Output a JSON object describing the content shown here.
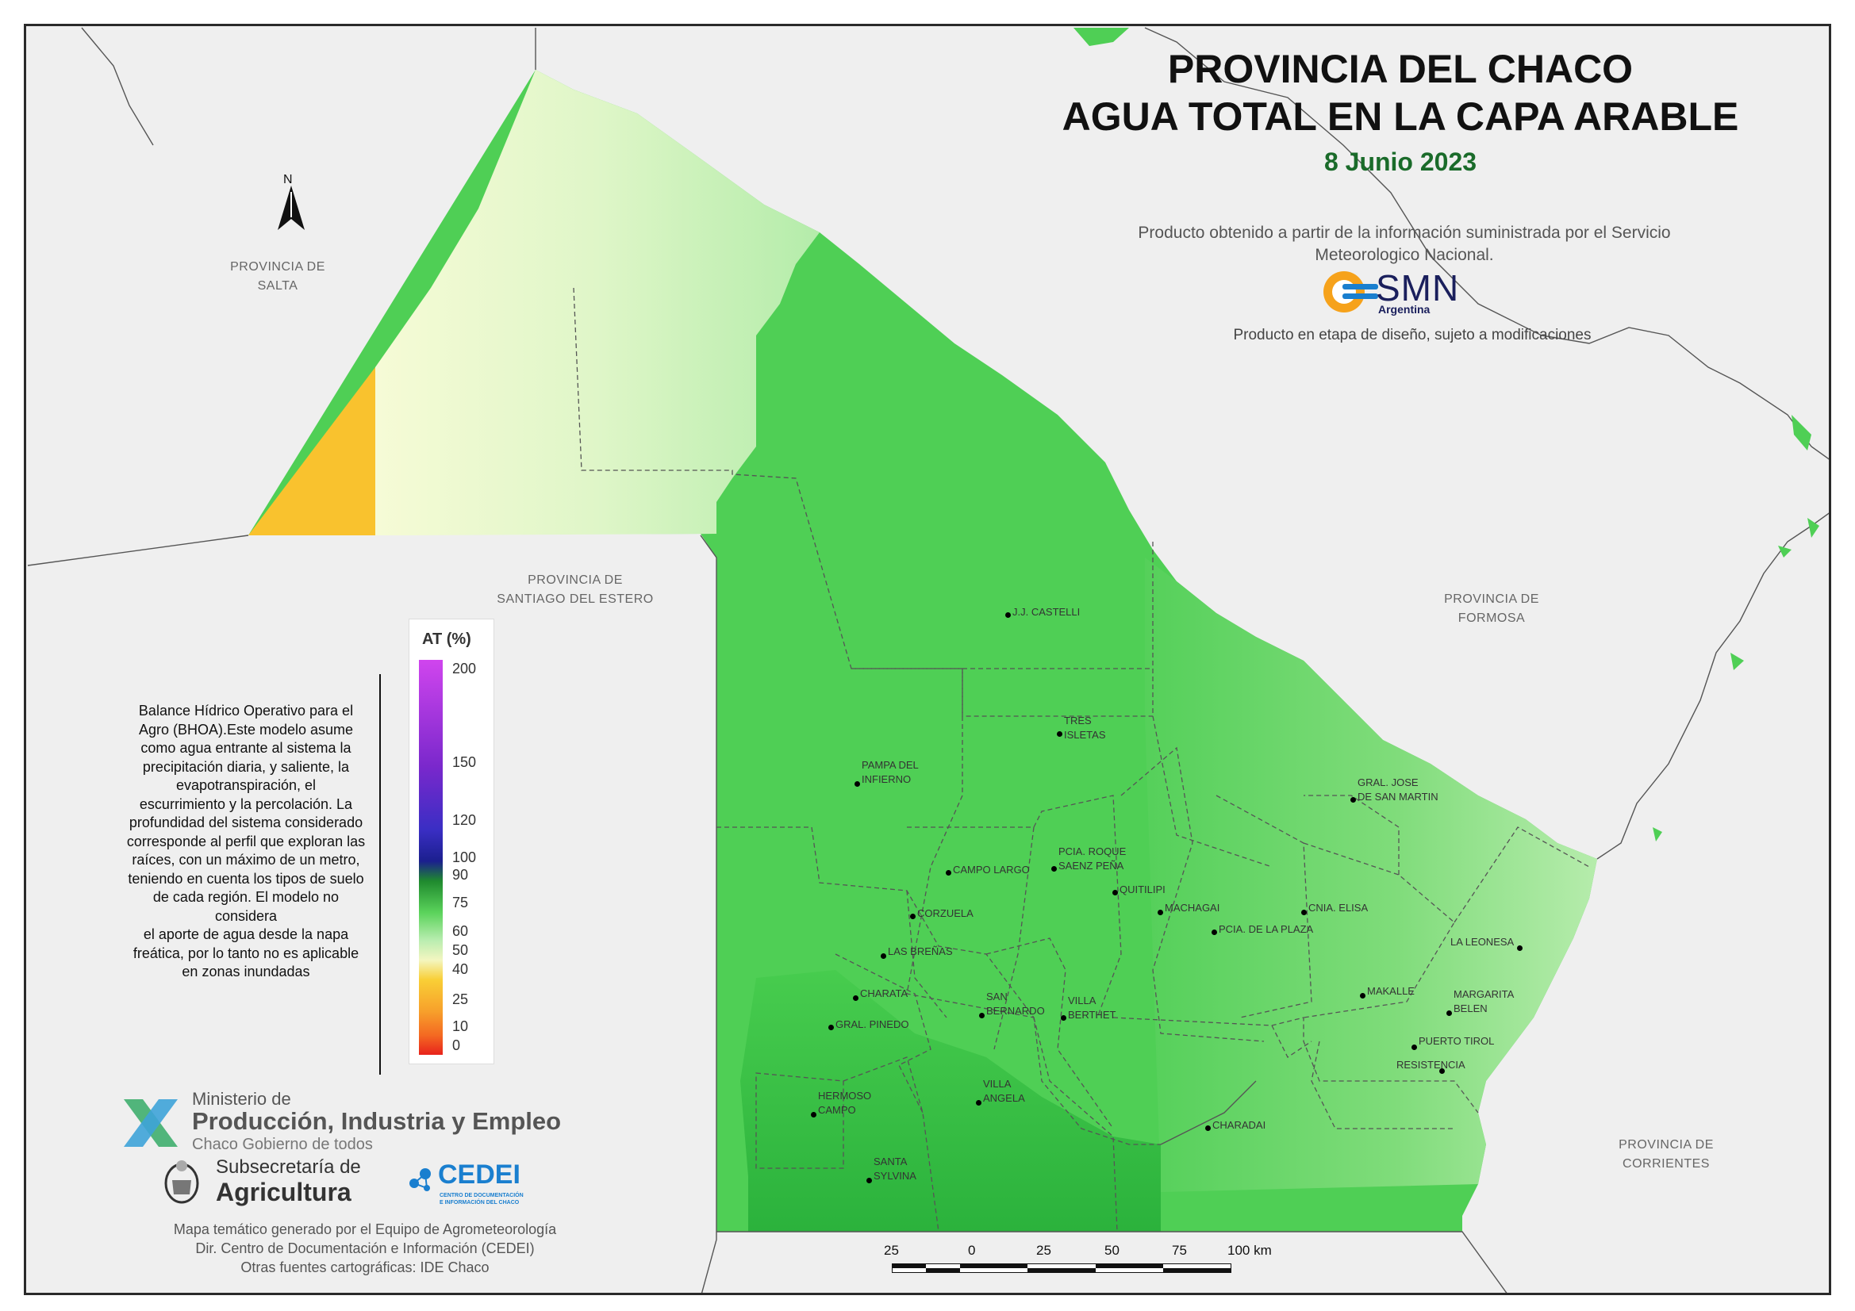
{
  "title": {
    "line1": "PROVINCIA DEL CHACO",
    "line2": "AGUA TOTAL EN LA CAPA ARABLE",
    "date": "8 Junio 2023"
  },
  "source_note": "Producto obtenido a partir de la información suministrada por el Servicio Meteorologico Nacional.",
  "smn_logo": {
    "text": "SMN",
    "subtext": "Argentina"
  },
  "design_note": "Producto en etapa de diseño, sujeto a modificaciones",
  "north_arrow": {
    "label": "N",
    "icon": "north-arrow-icon"
  },
  "neighbor_provinces": {
    "salta": [
      "PROVINCIA DE",
      "SALTA"
    ],
    "santiago": [
      "PROVINCIA DE",
      "SANTIAGO DEL ESTERO"
    ],
    "formosa": [
      "PROVINCIA DE",
      "FORMOSA"
    ],
    "corrientes": [
      "PROVINCIA DE",
      "CORRIENTES"
    ]
  },
  "localities": [
    [
      "J.J. CASTELLI"
    ],
    [
      "TRES",
      "ISLETAS"
    ],
    [
      "PAMPA DEL",
      "INFIERNO"
    ],
    [
      "GRAL. JOSE",
      "DE SAN MARTIN"
    ],
    [
      "PCIA. ROQUE",
      "SAENZ PEÑA"
    ],
    [
      "CAMPO LARGO"
    ],
    [
      "QUITILIPI"
    ],
    [
      "MACHAGAI"
    ],
    [
      "CNIA. ELISA"
    ],
    [
      "PCIA. DE LA PLAZA"
    ],
    [
      "CORZUELA"
    ],
    [
      "LAS BREÑAS"
    ],
    [
      "LA LEONESA"
    ],
    [
      "CHARATA"
    ],
    [
      "SAN",
      "BERNARDO"
    ],
    [
      "VILLA",
      "BERTHET"
    ],
    [
      "MAKALLE"
    ],
    [
      "MARGARITA",
      "BELEN"
    ],
    [
      "GRAL. PINEDO"
    ],
    [
      "PUERTO TIROL"
    ],
    [
      "RESISTENCIA"
    ],
    [
      "HERMOSO",
      "CAMPO"
    ],
    [
      "VILLA",
      "ANGELA"
    ],
    [
      "CHARADAI"
    ],
    [
      "SANTA",
      "SYLVINA"
    ]
  ],
  "legend": {
    "title": "AT (%)",
    "ticks": [
      "200",
      "150",
      "120",
      "100",
      "90",
      "75",
      "60",
      "50",
      "40",
      "25",
      "10",
      "0"
    ],
    "colors": {
      "0": "#e8231c",
      "10": "#f46a22",
      "25": "#f7a02b",
      "40": "#f9cf36",
      "50": "#f3f6c0",
      "60": "#b9edb0",
      "75": "#5bd35b",
      "90": "#1f8a2e",
      "100": "#1b1f8e",
      "120": "#3a2ec4",
      "150": "#7a28cc",
      "200": "#d045ee"
    }
  },
  "bhoa_text": [
    "Balance Hídrico Operativo para el",
    "Agro (BHOA).Este modelo asume",
    "como agua entrante al sistema la",
    "precipitación diaria, y saliente, la",
    "evapotranspiración, el",
    "escurrimiento y la percolación. La",
    "profundidad del sistema considerado",
    "corresponde al perfil que exploran las",
    "raíces, con un máximo de un metro,",
    "teniendo en cuenta los tipos de suelo",
    "de cada región. El modelo no",
    "considera",
    "el aporte de agua desde la napa",
    "freática, por lo tanto no es aplicable",
    "en zonas inundadas"
  ],
  "ministry": {
    "line1": "Ministerio de",
    "line2": "Producción, Industria y Empleo",
    "line3": "Chaco Gobierno de todos"
  },
  "subsecretaria": {
    "line1": "Subsecretaría de",
    "line2": "Agricultura"
  },
  "cedei": {
    "name": "CEDEI",
    "subtitle_1": "CENTRO DE DOCUMENTACIÓN",
    "subtitle_2": "E INFORMACIÓN DEL CHACO"
  },
  "credits": [
    "Mapa temático generado por el Equipo de Agrometeorología",
    "Dir. Centro de Documentación e Información (CEDEI)",
    "Otras fuentes cartográficas: IDE Chaco"
  ],
  "scale": {
    "labels": [
      "25",
      "0",
      "25",
      "50",
      "75",
      "100 km"
    ]
  },
  "map_colors": {
    "background": "#efefef",
    "dry": "#f9c22e",
    "moist_light": "#eef8cf",
    "moist_mid": "#a8e9a0",
    "wet": "#4fcf55",
    "very_wet": "#2aab3a"
  }
}
